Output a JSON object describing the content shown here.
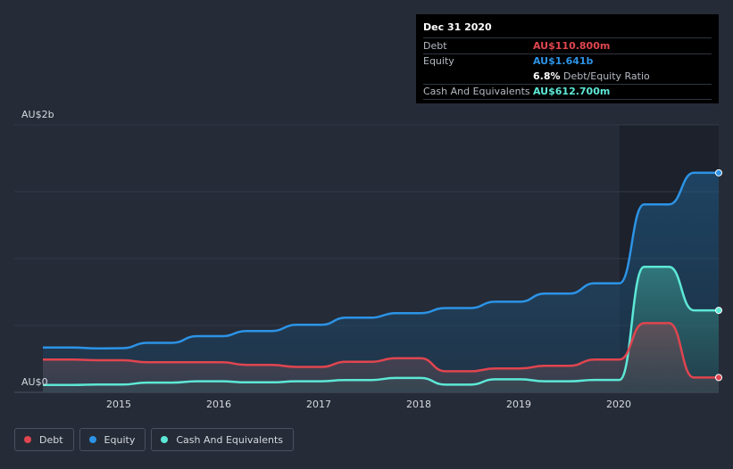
{
  "tooltip": {
    "date": "Dec 31 2020",
    "debt_label": "Debt",
    "debt_value": "AU$110.800m",
    "equity_label": "Equity",
    "equity_value": "AU$1.641b",
    "ratio_value": "6.8%",
    "ratio_label": "Debt/Equity Ratio",
    "cash_label": "Cash And Equivalents",
    "cash_value": "AU$612.700m"
  },
  "legend": [
    {
      "label": "Debt",
      "color": "#e0454f"
    },
    {
      "label": "Equity",
      "color": "#2c93e6"
    },
    {
      "label": "Cash And Equivalents",
      "color": "#5de8d6"
    }
  ],
  "chart_data": {
    "type": "line",
    "ylabel_top": "AU$2b",
    "ylabel_bottom": "AU$0",
    "xlim": [
      2014.2,
      2021.0
    ],
    "ylim": [
      0,
      2.0
    ],
    "x_ticks": [
      "2015",
      "2016",
      "2017",
      "2018",
      "2019",
      "2020"
    ],
    "series": [
      {
        "name": "Equity",
        "color": "#2c93e6",
        "points": [
          [
            2014.2,
            0.335
          ],
          [
            2014.5,
            0.335
          ],
          [
            2014.75,
            0.328
          ],
          [
            2015.0,
            0.33
          ],
          [
            2015.25,
            0.37
          ],
          [
            2015.5,
            0.37
          ],
          [
            2015.75,
            0.42
          ],
          [
            2016.0,
            0.42
          ],
          [
            2016.25,
            0.458
          ],
          [
            2016.5,
            0.458
          ],
          [
            2016.75,
            0.505
          ],
          [
            2017.0,
            0.505
          ],
          [
            2017.25,
            0.558
          ],
          [
            2017.5,
            0.558
          ],
          [
            2017.75,
            0.592
          ],
          [
            2018.0,
            0.592
          ],
          [
            2018.25,
            0.63
          ],
          [
            2018.5,
            0.63
          ],
          [
            2018.75,
            0.677
          ],
          [
            2019.0,
            0.677
          ],
          [
            2019.25,
            0.738
          ],
          [
            2019.5,
            0.738
          ],
          [
            2019.75,
            0.815
          ],
          [
            2020.0,
            0.815
          ],
          [
            2020.25,
            1.405
          ],
          [
            2020.5,
            1.405
          ],
          [
            2020.75,
            1.641
          ],
          [
            2021.0,
            1.641
          ]
        ]
      },
      {
        "name": "Cash And Equivalents",
        "color": "#5de8d6",
        "points": [
          [
            2014.2,
            0.055
          ],
          [
            2014.5,
            0.055
          ],
          [
            2014.75,
            0.058
          ],
          [
            2015.0,
            0.058
          ],
          [
            2015.25,
            0.073
          ],
          [
            2015.5,
            0.073
          ],
          [
            2015.75,
            0.083
          ],
          [
            2016.0,
            0.083
          ],
          [
            2016.25,
            0.075
          ],
          [
            2016.5,
            0.075
          ],
          [
            2016.75,
            0.083
          ],
          [
            2017.0,
            0.083
          ],
          [
            2017.25,
            0.092
          ],
          [
            2017.5,
            0.092
          ],
          [
            2017.75,
            0.107
          ],
          [
            2018.0,
            0.107
          ],
          [
            2018.25,
            0.057
          ],
          [
            2018.5,
            0.057
          ],
          [
            2018.75,
            0.097
          ],
          [
            2019.0,
            0.097
          ],
          [
            2019.25,
            0.083
          ],
          [
            2019.5,
            0.083
          ],
          [
            2019.75,
            0.093
          ],
          [
            2020.0,
            0.093
          ],
          [
            2020.25,
            0.938
          ],
          [
            2020.5,
            0.938
          ],
          [
            2020.75,
            0.6127
          ],
          [
            2021.0,
            0.6127
          ]
        ]
      },
      {
        "name": "Debt",
        "color": "#e0454f",
        "points": [
          [
            2014.2,
            0.245
          ],
          [
            2014.5,
            0.245
          ],
          [
            2014.75,
            0.24
          ],
          [
            2015.0,
            0.24
          ],
          [
            2015.25,
            0.225
          ],
          [
            2015.5,
            0.225
          ],
          [
            2015.75,
            0.225
          ],
          [
            2016.0,
            0.225
          ],
          [
            2016.25,
            0.205
          ],
          [
            2016.5,
            0.205
          ],
          [
            2016.75,
            0.19
          ],
          [
            2017.0,
            0.19
          ],
          [
            2017.25,
            0.228
          ],
          [
            2017.5,
            0.228
          ],
          [
            2017.75,
            0.255
          ],
          [
            2018.0,
            0.255
          ],
          [
            2018.25,
            0.157
          ],
          [
            2018.5,
            0.157
          ],
          [
            2018.75,
            0.178
          ],
          [
            2019.0,
            0.178
          ],
          [
            2019.25,
            0.198
          ],
          [
            2019.5,
            0.198
          ],
          [
            2019.75,
            0.245
          ],
          [
            2020.0,
            0.245
          ],
          [
            2020.25,
            0.517
          ],
          [
            2020.5,
            0.517
          ],
          [
            2020.75,
            0.1108
          ],
          [
            2021.0,
            0.1108
          ]
        ]
      }
    ]
  }
}
